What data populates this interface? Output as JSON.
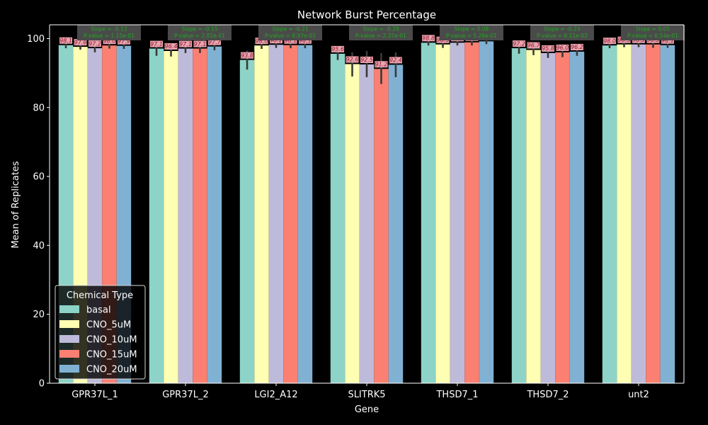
{
  "chart_data": {
    "type": "bar",
    "title": "Network Burst Percentage",
    "xlabel": "Gene",
    "ylabel": "Mean of Replicates",
    "ylim": [
      0,
      104
    ],
    "yticks": [
      0,
      20,
      40,
      60,
      80,
      100
    ],
    "grid": false,
    "legend_title": "Chemical Type",
    "legend_position": "bottom-left",
    "categories": [
      "GPR37L_1",
      "GPR37L_2",
      "LGI2_A12",
      "SLITRK5",
      "THSD7_1",
      "THSD7_2",
      "unt2"
    ],
    "series": [
      {
        "name": "basal",
        "color": "#8dd3c7",
        "values": [
          98.1,
          97.1,
          93.8,
          95.6,
          98.8,
          97.2,
          98.0
        ],
        "labels": [
          "98.1",
          "97.1",
          "93.8",
          "95.6",
          "98.8",
          "97.2",
          "98.0"
        ],
        "err_low": [
          97.2,
          95.0,
          91.0,
          93.8,
          98.0,
          95.6,
          97.2
        ],
        "err_high": [
          98.9,
          99.0,
          96.5,
          97.4,
          99.5,
          98.8,
          98.8
        ]
      },
      {
        "name": "CNO_5uM",
        "color": "#ffffb3",
        "values": [
          97.6,
          96.4,
          98.0,
          92.6,
          98.3,
          96.7,
          98.3
        ],
        "labels": [
          "97.6",
          "96.4",
          "98.0",
          "92.6",
          "98.3",
          "96.7",
          "98.3"
        ],
        "err_low": [
          96.8,
          94.8,
          97.0,
          89.0,
          97.3,
          95.2,
          97.5
        ],
        "err_high": [
          98.4,
          98.0,
          99.0,
          96.0,
          99.2,
          98.2,
          99.1
        ]
      },
      {
        "name": "CNO_10uM",
        "color": "#bebada",
        "values": [
          97.2,
          97.1,
          98.2,
          92.5,
          98.8,
          95.8,
          98.3
        ],
        "labels": [
          "97.2",
          "97.1",
          "98.2",
          "92.5",
          "98.8",
          "95.8",
          "98.3"
        ],
        "err_low": [
          96.0,
          95.8,
          97.3,
          88.8,
          98.0,
          94.4,
          97.5
        ],
        "err_high": [
          98.3,
          98.4,
          99.1,
          96.4,
          99.6,
          97.2,
          99.1
        ]
      },
      {
        "name": "CNO_15uM",
        "color": "#fb8072",
        "values": [
          98.0,
          97.1,
          98.1,
          91.2,
          98.9,
          96.0,
          98.3
        ],
        "labels": [
          "98.0",
          "97.1",
          "98.1",
          "91.2",
          "98.9",
          "96.0",
          "98.3"
        ],
        "err_low": [
          97.1,
          95.8,
          97.2,
          86.8,
          98.0,
          94.6,
          97.3
        ],
        "err_high": [
          98.9,
          98.4,
          99.0,
          95.8,
          99.7,
          97.4,
          99.3
        ]
      },
      {
        "name": "CNO_20uM",
        "color": "#80b1d3",
        "values": [
          97.9,
          97.7,
          98.1,
          92.4,
          99.2,
          96.2,
          98.1
        ],
        "labels": [
          "97.9",
          "97.7",
          "98.1",
          "92.4",
          "99.2",
          "96.2",
          "98.1"
        ],
        "err_low": [
          97.0,
          96.6,
          97.2,
          88.8,
          98.4,
          95.0,
          97.3
        ],
        "err_high": [
          98.8,
          98.8,
          99.0,
          96.0,
          100.0,
          97.4,
          98.9
        ]
      }
    ],
    "annotations": [
      {
        "slope": "Slope = -0.12",
        "pvalue": "P-value = 1.15e-01"
      },
      {
        "slope": "Slope = -0.15",
        "pvalue": "P-value = 2.81e-01"
      },
      {
        "slope": "Slope = -0.21",
        "pvalue": "P-value = 8.97e-01"
      },
      {
        "slope": "Slope = -0.29",
        "pvalue": "P-value = 2.37e-01"
      },
      {
        "slope": "Slope = 0.08",
        "pvalue": "P-value = 5.26e-01"
      },
      {
        "slope": "Slope = -0.23",
        "pvalue": "P-value = 6.11e-02"
      },
      {
        "slope": "Slope = 0.05",
        "pvalue": "P-value = 6.54e-01"
      }
    ],
    "colors": {
      "background": "#000000",
      "axes": "#ffffff",
      "text": "#ffffff",
      "errorbar": "#3a3a3a",
      "value_label_bg": "#e9a4b0",
      "value_label_text": "#8b1a2b",
      "annotation_bg": "#4a4a4a",
      "annotation_text": "#1fa81f"
    }
  }
}
